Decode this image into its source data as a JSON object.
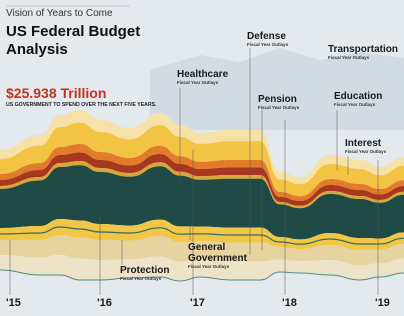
{
  "header": {
    "kicker": "Vision of Years to Come",
    "title_line1": "US Federal Budget",
    "title_line2": "Analysis",
    "total": "$25.938 Trillion",
    "total_caption": "US GOVERNMENT TO SPEND OVER THE NEXT FIVE YEARS."
  },
  "categories": [
    {
      "name": "Defense",
      "subtitle": "Fiscal Year Outlays"
    },
    {
      "name": "Transportation",
      "subtitle": "Fiscal Year Outlays"
    },
    {
      "name": "Healthcare",
      "subtitle": "Fiscal Year Outlays"
    },
    {
      "name": "Pension",
      "subtitle": "Fiscal Year Outlays"
    },
    {
      "name": "Education",
      "subtitle": "Fiscal Year Outlays"
    },
    {
      "name": "Interest",
      "subtitle": "Fiscal Year Outlays"
    },
    {
      "name_line1": "General",
      "name_line2": "Government",
      "subtitle": "Fiscal Year Outlays"
    },
    {
      "name": "Protection",
      "subtitle": "Fiscal Year Outlays"
    }
  ],
  "years": [
    "'15",
    "'16",
    "'17",
    "'18",
    "'19"
  ]
}
